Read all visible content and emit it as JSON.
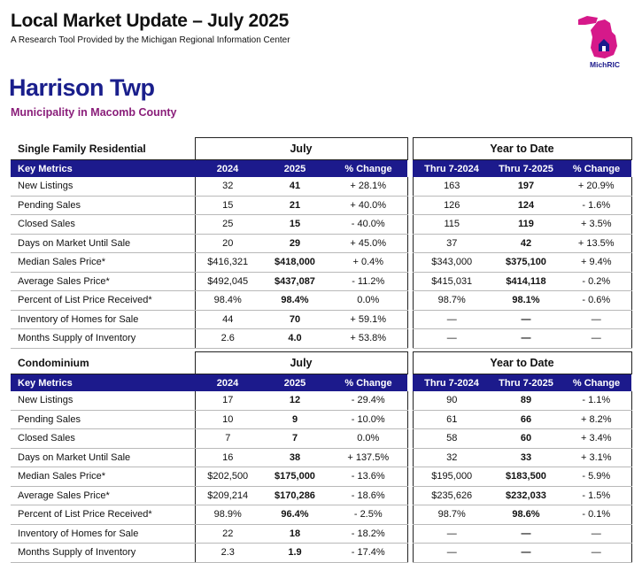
{
  "header": {
    "title": "Local Market Update – July 2025",
    "subtitle": "A Research Tool Provided by the Michigan Regional Information Center",
    "logo_text": "MichRIC"
  },
  "municipality": {
    "name": "Harrison Twp",
    "county": "Municipality in Macomb County"
  },
  "columns": {
    "key": "Key Metrics",
    "y2024": "2024",
    "y2025": "2025",
    "pct": "% Change",
    "ytd2024": "Thru 7-2024",
    "ytd2025": "Thru 7-2025",
    "ytd_pct": "% Change"
  },
  "groups": {
    "month": "July",
    "ytd": "Year to Date"
  },
  "sections": [
    {
      "name": "Single Family Residential",
      "rows": [
        [
          "New Listings",
          "32",
          "41",
          "+ 28.1%",
          "163",
          "197",
          "+ 20.9%"
        ],
        [
          "Pending Sales",
          "15",
          "21",
          "+ 40.0%",
          "126",
          "124",
          "- 1.6%"
        ],
        [
          "Closed Sales",
          "25",
          "15",
          "- 40.0%",
          "115",
          "119",
          "+ 3.5%"
        ],
        [
          "Days on Market Until Sale",
          "20",
          "29",
          "+ 45.0%",
          "37",
          "42",
          "+ 13.5%"
        ],
        [
          "Median Sales Price*",
          "$416,321",
          "$418,000",
          "+ 0.4%",
          "$343,000",
          "$375,100",
          "+ 9.4%"
        ],
        [
          "Average Sales Price*",
          "$492,045",
          "$437,087",
          "- 11.2%",
          "$415,031",
          "$414,118",
          "- 0.2%"
        ],
        [
          "Percent of List Price Received*",
          "98.4%",
          "98.4%",
          "0.0%",
          "98.7%",
          "98.1%",
          "- 0.6%"
        ],
        [
          "Inventory of Homes for Sale",
          "44",
          "70",
          "+ 59.1%",
          "—",
          "—",
          "—"
        ],
        [
          "Months Supply of Inventory",
          "2.6",
          "4.0",
          "+ 53.8%",
          "—",
          "—",
          "—"
        ]
      ]
    },
    {
      "name": "Condominium",
      "rows": [
        [
          "New Listings",
          "17",
          "12",
          "- 29.4%",
          "90",
          "89",
          "- 1.1%"
        ],
        [
          "Pending Sales",
          "10",
          "9",
          "- 10.0%",
          "61",
          "66",
          "+ 8.2%"
        ],
        [
          "Closed Sales",
          "7",
          "7",
          "0.0%",
          "58",
          "60",
          "+ 3.4%"
        ],
        [
          "Days on Market Until Sale",
          "16",
          "38",
          "+ 137.5%",
          "32",
          "33",
          "+ 3.1%"
        ],
        [
          "Median Sales Price*",
          "$202,500",
          "$175,000",
          "- 13.6%",
          "$195,000",
          "$183,500",
          "- 5.9%"
        ],
        [
          "Average Sales Price*",
          "$209,214",
          "$170,286",
          "- 18.6%",
          "$235,626",
          "$232,033",
          "- 1.5%"
        ],
        [
          "Percent of List Price Received*",
          "98.9%",
          "96.4%",
          "- 2.5%",
          "98.7%",
          "98.6%",
          "- 0.1%"
        ],
        [
          "Inventory of Homes for Sale",
          "22",
          "18",
          "- 18.2%",
          "—",
          "—",
          "—"
        ],
        [
          "Months Supply of Inventory",
          "2.3",
          "1.9",
          "- 17.4%",
          "—",
          "—",
          "—"
        ]
      ]
    }
  ],
  "colors": {
    "header_band": "#1c1a8c",
    "title_blue": "#1a1f8c",
    "county_purple": "#8a1e7a",
    "logo_magenta": "#d6198a"
  }
}
